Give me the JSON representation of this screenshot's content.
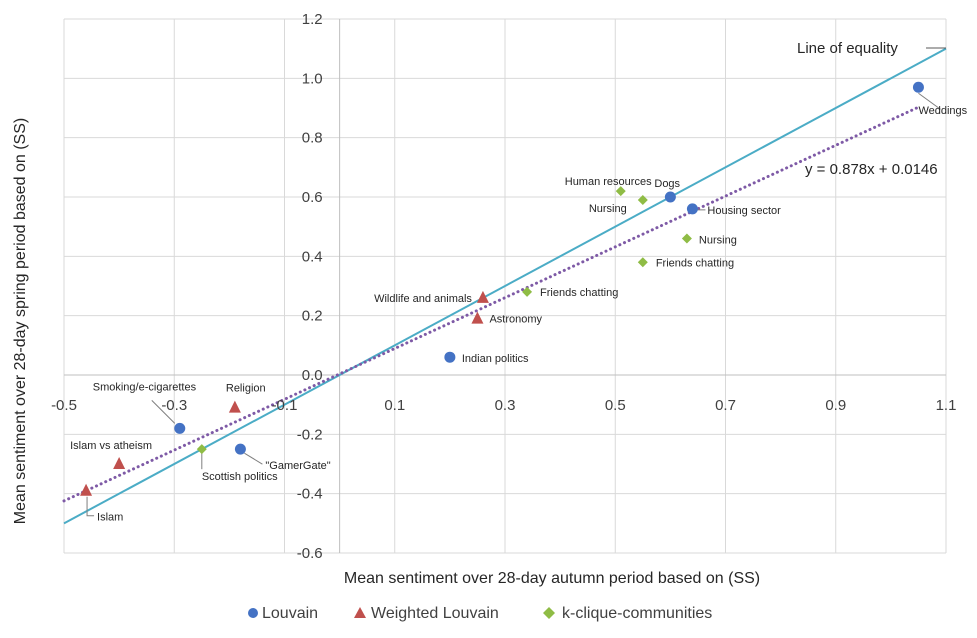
{
  "chart_data": {
    "type": "scatter",
    "xlabel": "Mean sentiment over 28-day autumn period based on (SS)",
    "ylabel": "Mean sentiment over 28-day spring period based on (SS)",
    "xlim": [
      -0.5,
      1.1
    ],
    "ylim": [
      -0.6,
      1.2
    ],
    "xticks": [
      "-0.5",
      "-0.3",
      "-0.1",
      "0.1",
      "0.3",
      "0.5",
      "0.7",
      "0.9",
      "1.1"
    ],
    "yticks": [
      "-0.6",
      "-0.4",
      "-0.2",
      "0.0",
      "0.2",
      "0.4",
      "0.6",
      "0.8",
      "1.0",
      "1.2"
    ],
    "grid": true,
    "legend_position": "bottom",
    "series": [
      {
        "name": "Louvain",
        "marker": "circle",
        "color": "#4472C4",
        "points": [
          {
            "label": "Weddings",
            "x": 1.05,
            "y": 0.97
          },
          {
            "label": "Dogs",
            "x": 0.6,
            "y": 0.6
          },
          {
            "label": "Housing sector",
            "x": 0.64,
            "y": 0.56
          },
          {
            "label": "Indian politics",
            "x": 0.2,
            "y": 0.06
          },
          {
            "label": "Smoking/e-cigarettes",
            "x": -0.29,
            "y": -0.18
          },
          {
            "label": "\"GamerGate\"",
            "x": -0.18,
            "y": -0.25
          }
        ]
      },
      {
        "name": "Weighted Louvain",
        "marker": "triangle",
        "color": "#C0504D",
        "points": [
          {
            "label": "Wildlife and animals",
            "x": 0.26,
            "y": 0.26
          },
          {
            "label": "Astronomy",
            "x": 0.25,
            "y": 0.19
          },
          {
            "label": "Religion",
            "x": -0.19,
            "y": -0.11
          },
          {
            "label": "Islam vs atheism",
            "x": -0.4,
            "y": -0.3
          },
          {
            "label": "Islam",
            "x": -0.46,
            "y": -0.39
          }
        ]
      },
      {
        "name": "k-clique-communities",
        "marker": "diamond",
        "color": "#8FBC45",
        "points": [
          {
            "label": "Human resources",
            "x": 0.51,
            "y": 0.62
          },
          {
            "label": "Nursing",
            "x": 0.55,
            "y": 0.59
          },
          {
            "label": "Nursing",
            "x": 0.63,
            "y": 0.46
          },
          {
            "label": "Friends chatting",
            "x": 0.55,
            "y": 0.38
          },
          {
            "label": "Friends chatting",
            "x": 0.34,
            "y": 0.28
          },
          {
            "label": "Scottish politics",
            "x": -0.25,
            "y": -0.25
          }
        ]
      }
    ],
    "lines": [
      {
        "name": "Line of equality",
        "slope": 1.0,
        "intercept": 0.0,
        "style": "solid",
        "color": "#4BACC6"
      },
      {
        "name": "trendline",
        "slope": 0.878,
        "intercept": 0.0146,
        "style": "dotted",
        "color": "#7E5AA6"
      }
    ],
    "annotations": {
      "equality_label": "Line of equality",
      "trend_equation": "y = 0.878x + 0.0146"
    }
  }
}
